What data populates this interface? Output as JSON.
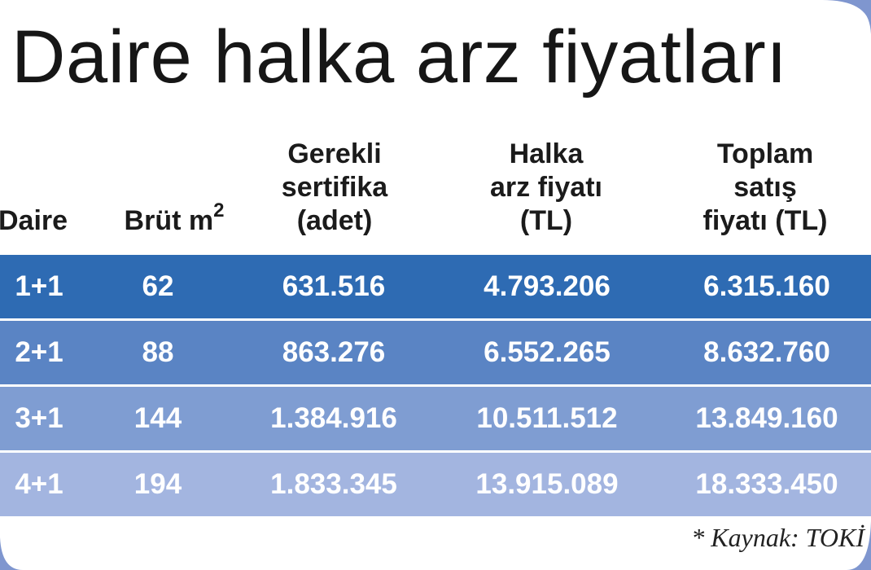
{
  "title": "Daire halka arz fiyatları",
  "headers": {
    "daire": "Daire",
    "brut": "Brüt m",
    "brut_sup": "2",
    "sertifika": [
      "Gerekli",
      "sertifika",
      "(adet)"
    ],
    "halka": [
      "Halka",
      "arz fiyatı",
      "(TL)"
    ],
    "toplam": [
      "Toplam",
      "satış",
      "fiyatı (TL)"
    ]
  },
  "rows": [
    {
      "daire": "1+1",
      "brut": "62",
      "sertifika": "631.516",
      "halka": "4.793.206",
      "toplam": "6.315.160"
    },
    {
      "daire": "2+1",
      "brut": "88",
      "sertifika": "863.276",
      "halka": "6.552.265",
      "toplam": "8.632.760"
    },
    {
      "daire": "3+1",
      "brut": "144",
      "sertifika": "1.384.916",
      "halka": "10.511.512",
      "toplam": "13.849.160"
    },
    {
      "daire": "4+1",
      "brut": "194",
      "sertifika": "1.833.345",
      "halka": "13.915.089",
      "toplam": "18.333.450"
    }
  ],
  "row_colors": [
    "#2e6bb3",
    "#5a84c4",
    "#7f9dd2",
    "#a3b5e0"
  ],
  "frame_color": "#7f96cf",
  "source": "* Kaynak: TOKİ"
}
